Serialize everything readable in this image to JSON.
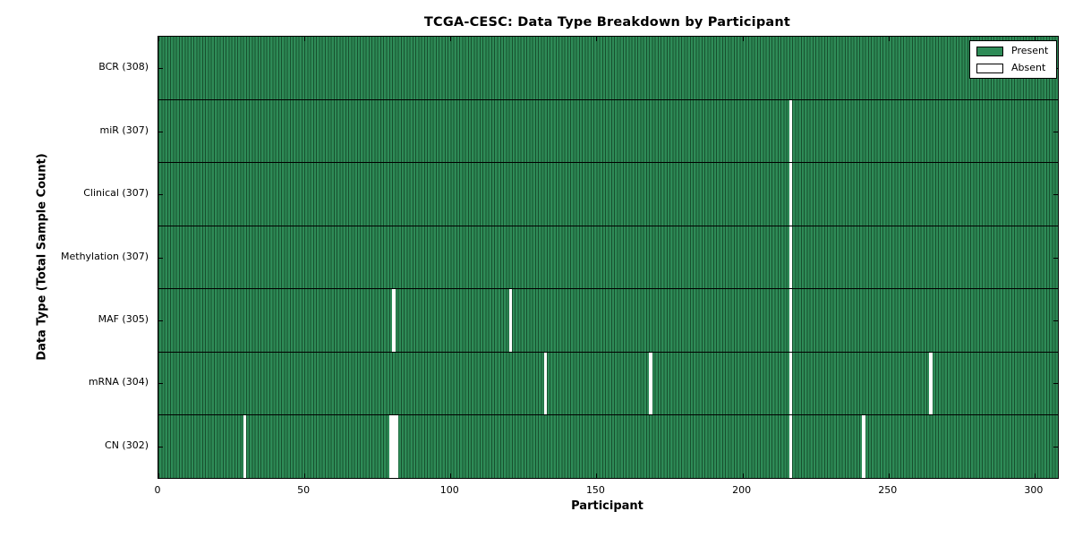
{
  "chart": {
    "title": "TCGA-CESC: Data Type Breakdown by Participant",
    "xlabel": "Participant",
    "ylabel": "Data Type (Total Sample Count)"
  },
  "chart_data": {
    "type": "heatmap",
    "title": "TCGA-CESC: Data Type Breakdown by Participant",
    "xlabel": "Participant",
    "ylabel": "Data Type (Total Sample Count)",
    "n_participants": 308,
    "xlim": [
      0,
      308
    ],
    "x_ticks": [
      0,
      50,
      100,
      150,
      200,
      250,
      300
    ],
    "grid": false,
    "legend_position": "upper right",
    "rows": [
      {
        "data_type": "BCR",
        "label": "BCR (308)",
        "present_count": 308,
        "absent_participants": []
      },
      {
        "data_type": "miR",
        "label": "miR (307)",
        "present_count": 307,
        "absent_participants": [
          216
        ]
      },
      {
        "data_type": "Clinical",
        "label": "Clinical (307)",
        "present_count": 307,
        "absent_participants": [
          216
        ]
      },
      {
        "data_type": "Methylation",
        "label": "Methylation (307)",
        "present_count": 307,
        "absent_participants": [
          216
        ]
      },
      {
        "data_type": "MAF",
        "label": "MAF (305)",
        "present_count": 305,
        "absent_participants": [
          80,
          120,
          216
        ]
      },
      {
        "data_type": "mRNA",
        "label": "mRNA (304)",
        "present_count": 304,
        "absent_participants": [
          132,
          168,
          216,
          264
        ]
      },
      {
        "data_type": "CN",
        "label": "CN (302)",
        "present_count": 302,
        "absent_participants": [
          29,
          79,
          80,
          81,
          216,
          241
        ]
      }
    ],
    "legend": [
      {
        "label": "Present",
        "color": "#2e8b57"
      },
      {
        "label": "Absent",
        "color": "#ffffff"
      }
    ],
    "colors": {
      "present_fill": "#2e8b57",
      "present_edge": "#17502e",
      "absent_fill": "#ffffff",
      "frame": "#000000",
      "background": "#ffffff"
    }
  }
}
